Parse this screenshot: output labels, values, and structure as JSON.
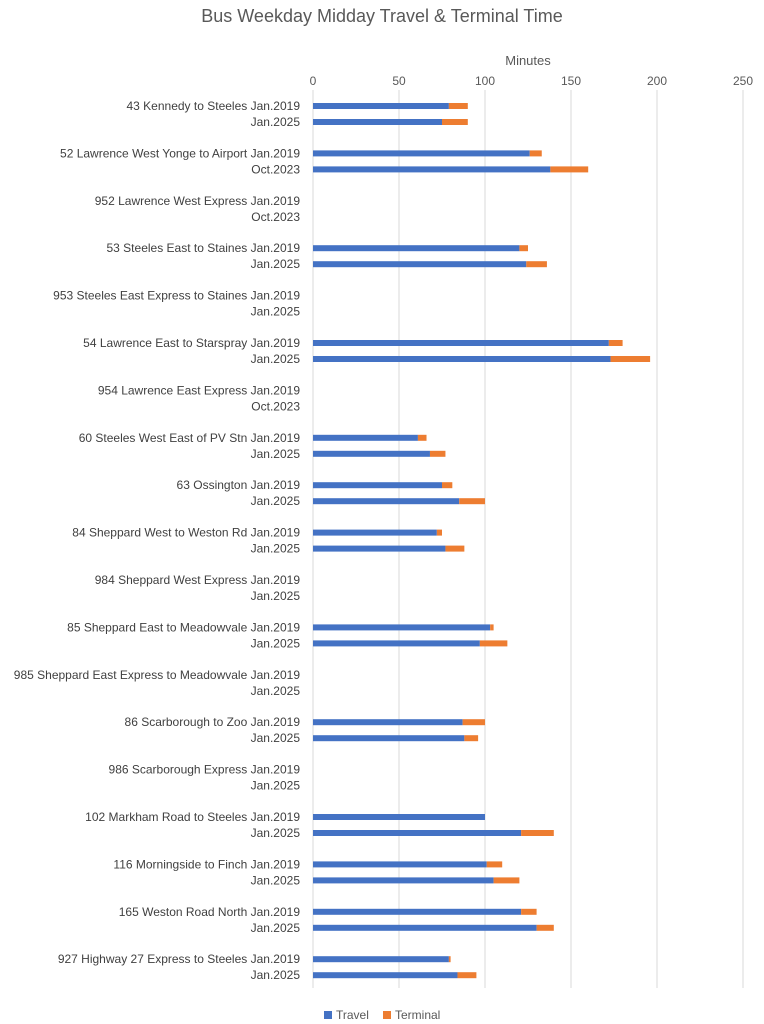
{
  "chart_data": {
    "type": "bar",
    "orientation": "horizontal",
    "stacked": true,
    "title": "Bus Weekday Midday Travel & Terminal Time",
    "xlabel": "Minutes",
    "xlim": [
      0,
      250
    ],
    "x_ticks": [
      0,
      50,
      100,
      150,
      200,
      250
    ],
    "grid": true,
    "legend_position": "bottom",
    "series_colors": [
      "#4472c4",
      "#ed7d31"
    ],
    "series": [
      {
        "name": "Travel"
      },
      {
        "name": "Terminal"
      }
    ],
    "groups": [
      {
        "route": "43 Kennedy to Steeles",
        "rows": [
          {
            "period": "Jan.2019",
            "travel": 79,
            "terminal": 11
          },
          {
            "period": "Jan.2025",
            "travel": 75,
            "terminal": 15
          }
        ]
      },
      {
        "route": "52 Lawrence West Yonge to Airport",
        "rows": [
          {
            "period": "Jan.2019",
            "travel": 126,
            "terminal": 7
          },
          {
            "period": "Oct.2023",
            "travel": 138,
            "terminal": 22
          }
        ]
      },
      {
        "route": "952 Lawrence West Express",
        "rows": [
          {
            "period": "Jan.2019",
            "travel": 0,
            "terminal": 0
          },
          {
            "period": "Oct.2023",
            "travel": 0,
            "terminal": 0
          }
        ]
      },
      {
        "route": "53 Steeles East to Staines",
        "rows": [
          {
            "period": "Jan.2019",
            "travel": 120,
            "terminal": 5
          },
          {
            "period": "Jan.2025",
            "travel": 124,
            "terminal": 12
          }
        ]
      },
      {
        "route": "953 Steeles East Express to Staines",
        "rows": [
          {
            "period": "Jan.2019",
            "travel": 0,
            "terminal": 0
          },
          {
            "period": "Jan.2025",
            "travel": 0,
            "terminal": 0
          }
        ]
      },
      {
        "route": "54 Lawrence East to Starspray",
        "rows": [
          {
            "period": "Jan.2019",
            "travel": 172,
            "terminal": 8
          },
          {
            "period": "Jan.2025",
            "travel": 173,
            "terminal": 23
          }
        ]
      },
      {
        "route": "954 Lawrence East Express",
        "rows": [
          {
            "period": "Jan.2019",
            "travel": 0,
            "terminal": 0
          },
          {
            "period": "Oct.2023",
            "travel": 0,
            "terminal": 0
          }
        ]
      },
      {
        "route": "60 Steeles West East of PV Stn",
        "rows": [
          {
            "period": "Jan.2019",
            "travel": 61,
            "terminal": 5
          },
          {
            "period": "Jan.2025",
            "travel": 68,
            "terminal": 9
          }
        ]
      },
      {
        "route": "63 Ossington",
        "rows": [
          {
            "period": "Jan.2019",
            "travel": 75,
            "terminal": 6
          },
          {
            "period": "Jan.2025",
            "travel": 85,
            "terminal": 15
          }
        ]
      },
      {
        "route": "84 Sheppard West to Weston Rd",
        "rows": [
          {
            "period": "Jan.2019",
            "travel": 72,
            "terminal": 3
          },
          {
            "period": "Jan.2025",
            "travel": 77,
            "terminal": 11
          }
        ]
      },
      {
        "route": "984 Sheppard West Express",
        "rows": [
          {
            "period": "Jan.2019",
            "travel": 0,
            "terminal": 0
          },
          {
            "period": "Jan.2025",
            "travel": 0,
            "terminal": 0
          }
        ]
      },
      {
        "route": "85 Sheppard East to Meadowvale",
        "rows": [
          {
            "period": "Jan.2019",
            "travel": 103,
            "terminal": 2
          },
          {
            "period": "Jan.2025",
            "travel": 97,
            "terminal": 16
          }
        ]
      },
      {
        "route": "985 Sheppard East Express to Meadowvale",
        "rows": [
          {
            "period": "Jan.2019",
            "travel": 0,
            "terminal": 0
          },
          {
            "period": "Jan.2025",
            "travel": 0,
            "terminal": 0
          }
        ]
      },
      {
        "route": "86 Scarborough to Zoo",
        "rows": [
          {
            "period": "Jan.2019",
            "travel": 87,
            "terminal": 13
          },
          {
            "period": "Jan.2025",
            "travel": 88,
            "terminal": 8
          }
        ]
      },
      {
        "route": "986 Scarborough Express",
        "rows": [
          {
            "period": "Jan.2019",
            "travel": 0,
            "terminal": 0
          },
          {
            "period": "Jan.2025",
            "travel": 0,
            "terminal": 0
          }
        ]
      },
      {
        "route": "102 Markham Road to Steeles",
        "rows": [
          {
            "period": "Jan.2019",
            "travel": 100,
            "terminal": 0
          },
          {
            "period": "Jan.2025",
            "travel": 121,
            "terminal": 19
          }
        ]
      },
      {
        "route": "116 Morningside to Finch",
        "rows": [
          {
            "period": "Jan.2019",
            "travel": 101,
            "terminal": 9
          },
          {
            "period": "Jan.2025",
            "travel": 105,
            "terminal": 15
          }
        ]
      },
      {
        "route": "165 Weston Road North",
        "rows": [
          {
            "period": "Jan.2019",
            "travel": 121,
            "terminal": 9
          },
          {
            "period": "Jan.2025",
            "travel": 130,
            "terminal": 10
          }
        ]
      },
      {
        "route": "927 Highway 27 Express to Steeles",
        "rows": [
          {
            "period": "Jan.2019",
            "travel": 79,
            "terminal": 1
          },
          {
            "period": "Jan.2025",
            "travel": 84,
            "terminal": 11
          }
        ]
      }
    ]
  }
}
